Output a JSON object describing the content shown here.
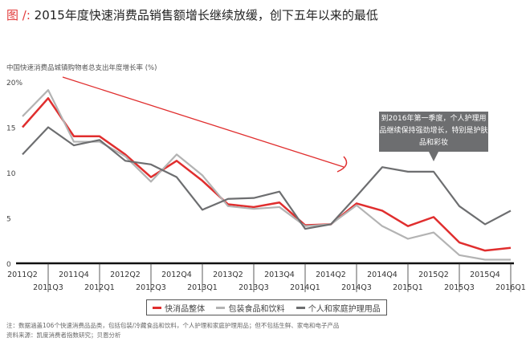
{
  "title": {
    "prefix": "图 /:",
    "text": "2015年度快速消费品销售额增长继续放缓，创下五年以来的最低"
  },
  "callout": "到2016年第一季度，个人护理用品继续保持强劲增长，特别是护肤品和彩妆",
  "notes": [
    "注：数据涵盖106个快速消费品品类，包括包装/冷藏食品和饮料，个人护理和家庭护理用品；但不包括生鲜、家电和电子产品",
    "资料来源：凯度消费者指数研究；贝恩分析"
  ],
  "chart_data": {
    "type": "line",
    "ylabel": "中国快速消费品城镇购物者总支出年度增长率 (%)",
    "ylim": [
      0,
      20
    ],
    "yticks": [
      "0",
      "5",
      "10",
      "15",
      "20%"
    ],
    "categories": [
      "2011Q2",
      "2011Q3",
      "2011Q4",
      "2012Q1",
      "2012Q2",
      "2012Q3",
      "2012Q4",
      "2013Q1",
      "2013Q2",
      "2013Q3",
      "2013Q4",
      "2014Q1",
      "2014Q2",
      "2014Q3",
      "2014Q4",
      "2015Q1",
      "2015Q2",
      "2015Q3",
      "2015Q4",
      "2016Q1"
    ],
    "legend_position": "bottom",
    "grid": false,
    "series": [
      {
        "name": "快消品整体",
        "color": "#e02e2e",
        "values": [
          15,
          18.2,
          14,
          14,
          12,
          9.5,
          11.3,
          9.1,
          6.5,
          6.2,
          6.7,
          4.2,
          4.3,
          6.6,
          5.8,
          4.1,
          5.1,
          2.3,
          1.4,
          1.7
        ]
      },
      {
        "name": "包装食品和饮料",
        "color": "#b3b3b3",
        "values": [
          16.2,
          19.1,
          13.4,
          13.4,
          11.8,
          9,
          12,
          9.7,
          6.3,
          6,
          6.2,
          4.1,
          4.3,
          6.4,
          4.1,
          2.7,
          3.4,
          0.9,
          0.4,
          0.4
        ]
      },
      {
        "name": "个人和家庭护理用品",
        "color": "#6d6e70",
        "values": [
          12,
          15,
          13,
          13.6,
          11.3,
          10.9,
          9.5,
          5.9,
          7.1,
          7.2,
          7.9,
          3.8,
          4.3,
          7.4,
          10.6,
          10.1,
          10.1,
          6.3,
          4.3,
          5.8
        ]
      }
    ]
  }
}
